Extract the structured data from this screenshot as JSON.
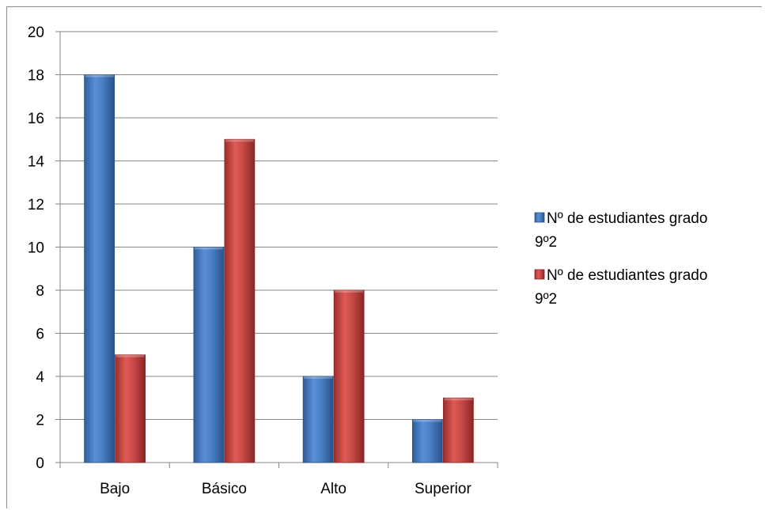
{
  "chart_data": {
    "type": "bar",
    "categories": [
      "Bajo",
      "Básico",
      "Alto",
      "Superior"
    ],
    "series": [
      {
        "name": "Nº de estudiantes grado 9º2",
        "legend_lines": [
          "Nº de estudiantes grado",
          "9º2"
        ],
        "values": [
          18,
          10,
          4,
          2
        ],
        "color": "#4f81bd"
      },
      {
        "name": "Nº de estudiantes grado 9º2",
        "legend_lines": [
          "Nº de estudiantes grado",
          "9º2"
        ],
        "values": [
          5,
          15,
          8,
          3
        ],
        "color": "#c0504d"
      }
    ],
    "ylim": [
      0,
      20
    ],
    "y_ticks": [
      "0",
      "2",
      "4",
      "6",
      "8",
      "10",
      "12",
      "14",
      "16",
      "18",
      "20"
    ],
    "grid": true,
    "legend_position": "right",
    "title": "",
    "xlabel": "",
    "ylabel": ""
  }
}
